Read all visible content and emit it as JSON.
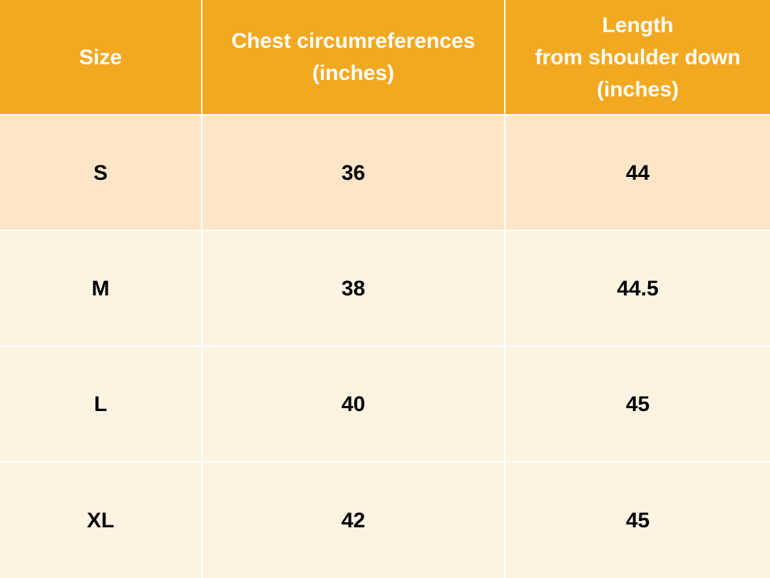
{
  "table": {
    "columns": [
      {
        "lines": [
          "Size"
        ]
      },
      {
        "lines": [
          "Chest circumreferences",
          "(inches)"
        ]
      },
      {
        "lines": [
          "Length",
          "from shoulder down",
          "(inches)"
        ]
      }
    ],
    "rows": [
      [
        "S",
        36,
        44
      ],
      [
        "M",
        38,
        44.5
      ],
      [
        "L",
        40,
        45
      ],
      [
        "XL",
        42,
        45
      ]
    ]
  }
}
